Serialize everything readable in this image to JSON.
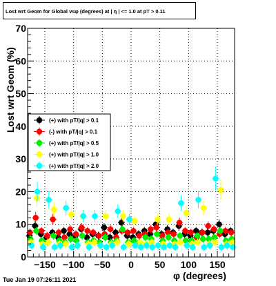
{
  "title": "Lost wrt Geom for Global vsφ (degrees) at | η | <= 1.0 at pT > 0.11",
  "footer_text": "Tue Jan 19 07:26:11 2021",
  "colors": {
    "axis": "#000000",
    "grid": "#000000",
    "background": "#ffffff"
  },
  "chart_data": {
    "type": "scatter",
    "title": "Lost wrt Geom for Global vsφ (degrees) at | η | <= 1.0 at pT > 0.11",
    "xlabel": "φ (degrees)",
    "ylabel": "Lost wrt Geom (%)",
    "xlim": [
      -180,
      180
    ],
    "ylim": [
      0,
      70
    ],
    "xticks": [
      -150,
      -100,
      -50,
      0,
      50,
      100,
      150
    ],
    "yticks": [
      0,
      10,
      20,
      30,
      40,
      50,
      60,
      70
    ],
    "grid": true,
    "legend_position": "left-middle",
    "x": [
      -175,
      -165,
      -155,
      -145,
      -135,
      -125,
      -115,
      -105,
      -95,
      -85,
      -75,
      -65,
      -55,
      -45,
      -35,
      -25,
      -15,
      -5,
      5,
      15,
      25,
      35,
      45,
      55,
      65,
      75,
      85,
      95,
      105,
      115,
      125,
      135,
      145,
      155,
      165,
      175
    ],
    "series": [
      {
        "name": "(+) with pT/|q| > 0.1",
        "color": "#000000",
        "values": [
          6.5,
          9.5,
          7.0,
          6.0,
          7.5,
          6.0,
          8.0,
          7.0,
          6.5,
          8.5,
          6.0,
          7.0,
          6.5,
          9.0,
          6.0,
          7.5,
          10.5,
          6.5,
          6.0,
          7.0,
          8.0,
          7.0,
          10.0,
          7.0,
          8.5,
          7.5,
          9.5,
          7.0,
          6.5,
          8.0,
          7.5,
          7.5,
          8.0,
          10.0,
          7.0,
          8.0
        ]
      },
      {
        "name": "(-) with pT/|q| > 0.1",
        "color": "#ff0000",
        "values": [
          7.5,
          12.0,
          8.0,
          6.5,
          11.5,
          7.5,
          6.0,
          8.5,
          7.0,
          9.0,
          8.0,
          7.5,
          6.5,
          7.0,
          8.5,
          6.0,
          8.0,
          7.5,
          8.0,
          6.5,
          7.0,
          8.5,
          9.0,
          6.5,
          7.5,
          7.0,
          10.5,
          8.0,
          7.5,
          6.0,
          7.5,
          9.5,
          8.5,
          7.0,
          8.0,
          7.5
        ]
      },
      {
        "name": "(+) with pT/|q| > 0.5",
        "color": "#00ee00",
        "values": [
          5.5,
          8.0,
          5.0,
          4.5,
          6.5,
          5.0,
          4.5,
          5.5,
          5.0,
          6.5,
          4.5,
          5.0,
          4.5,
          6.0,
          4.5,
          5.0,
          8.5,
          4.5,
          5.0,
          4.5,
          6.0,
          5.5,
          7.0,
          5.0,
          6.0,
          5.0,
          6.5,
          5.0,
          5.0,
          6.5,
          5.5,
          5.5,
          6.0,
          8.0,
          5.0,
          5.5
        ]
      },
      {
        "name": "(+) with pT/|q| > 1.0",
        "color": "#ffff00",
        "values": [
          4.5,
          18.0,
          4.0,
          4.5,
          14.5,
          4.0,
          4.0,
          13.0,
          3.5,
          12.5,
          4.0,
          4.5,
          3.5,
          12.5,
          4.0,
          4.5,
          12.5,
          4.0,
          11.0,
          4.5,
          4.0,
          4.5,
          11.5,
          4.0,
          11.5,
          4.0,
          4.5,
          13.5,
          4.0,
          4.5,
          15.0,
          4.0,
          4.5,
          20.5,
          4.0,
          4.5
        ]
      },
      {
        "name": "(+) with pT/|q| > 2.0",
        "color": "#00ffff",
        "values": [
          3.5,
          20.0,
          3.0,
          17.5,
          3.0,
          3.5,
          15.0,
          3.0,
          3.5,
          12.5,
          3.0,
          12.5,
          3.5,
          3.0,
          3.5,
          14.0,
          3.0,
          11.5,
          3.5,
          3.0,
          3.5,
          3.0,
          3.5,
          3.0,
          3.5,
          3.0,
          16.5,
          3.5,
          3.0,
          17.5,
          3.0,
          3.5,
          24.0,
          3.0,
          3.5,
          3.0
        ]
      }
    ]
  }
}
